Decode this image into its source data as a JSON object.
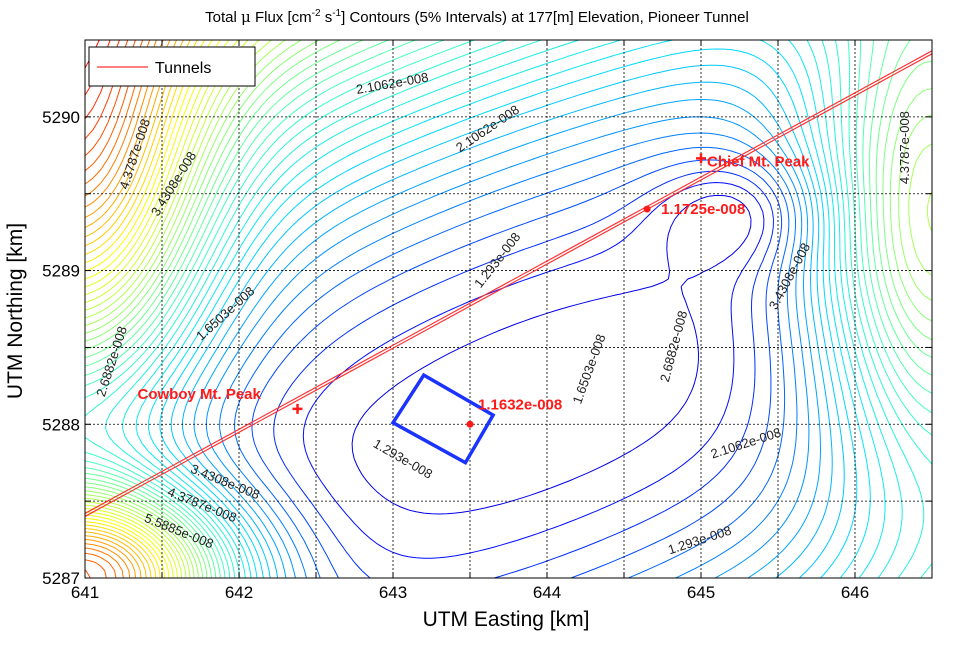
{
  "chart_data": {
    "type": "contour",
    "title_parts": {
      "a": "Total ",
      "mu": "μ",
      "b": " Flux [cm",
      "sup1": "-2",
      "c": " s",
      "sup2": "-1",
      "d": "] Contours (5% Intervals) at 177[m] Elevation, Pioneer Tunnel"
    },
    "xlabel": "UTM Easting [km]",
    "ylabel": "UTM Northing [km]",
    "xlim": [
      641.0,
      646.5
    ],
    "ylim": [
      5287.0,
      5290.5
    ],
    "xticks": [
      641,
      642,
      643,
      644,
      645,
      646
    ],
    "yticks": [
      5287,
      5288,
      5289,
      5290
    ],
    "grid": true,
    "legend": {
      "position": "top-left",
      "entries": [
        {
          "label": "Tunnels",
          "color": "#ff3030"
        }
      ]
    },
    "colormap": [
      "#000088",
      "#0000ff",
      "#0080ff",
      "#00e0ff",
      "#40ffc0",
      "#a0ff60",
      "#ffff00",
      "#ff8000",
      "#ff0000"
    ],
    "contour_labels": [
      {
        "text": "2.1062e-008",
        "x": 643.0,
        "y": 5290.19,
        "angle": -10
      },
      {
        "text": "2.1062e-008",
        "x": 643.63,
        "y": 5289.9,
        "angle": -34
      },
      {
        "text": "4.3787e-008",
        "x": 641.35,
        "y": 5289.75,
        "angle": -72
      },
      {
        "text": "3.4308e-008",
        "x": 641.6,
        "y": 5289.55,
        "angle": -58
      },
      {
        "text": "1.6503e-008",
        "x": 641.93,
        "y": 5288.7,
        "angle": -42
      },
      {
        "text": "2.6882e-008",
        "x": 641.2,
        "y": 5288.4,
        "angle": -72
      },
      {
        "text": "1.293e-008",
        "x": 643.7,
        "y": 5289.05,
        "angle": -52
      },
      {
        "text": "1.293e-008",
        "x": 643.05,
        "y": 5287.75,
        "angle": 30
      },
      {
        "text": "1.6503e-008",
        "x": 644.3,
        "y": 5288.35,
        "angle": -70
      },
      {
        "text": "2.6882e-008",
        "x": 644.85,
        "y": 5288.5,
        "angle": -75
      },
      {
        "text": "3.4308e-008",
        "x": 645.6,
        "y": 5288.95,
        "angle": -62
      },
      {
        "text": "4.3787e-008",
        "x": 646.35,
        "y": 5289.8,
        "angle": -90
      },
      {
        "text": "2.1062e-008",
        "x": 645.3,
        "y": 5287.85,
        "angle": -18
      },
      {
        "text": "1.293e-008",
        "x": 645.0,
        "y": 5287.22,
        "angle": -18
      },
      {
        "text": "3.4308e-008",
        "x": 641.9,
        "y": 5287.6,
        "angle": 22
      },
      {
        "text": "4.3787e-008",
        "x": 641.75,
        "y": 5287.45,
        "angle": 22
      },
      {
        "text": "5.5885e-008",
        "x": 641.6,
        "y": 5287.28,
        "angle": 22
      }
    ],
    "tunnel": {
      "x": [
        641.0,
        646.5
      ],
      "y": [
        5287.42,
        5290.43
      ],
      "color": "#ff3030"
    },
    "peaks": [
      {
        "label": "Cowboy Mt. Peak",
        "x": 642.38,
        "y": 5288.1
      },
      {
        "label": "Chief Mt. Peak",
        "x": 645.0,
        "y": 5289.73
      }
    ],
    "flux_points": [
      {
        "label": "1.1632e-008",
        "x": 643.5,
        "y": 5288.0
      },
      {
        "label": "1.1725e-008",
        "x": 644.65,
        "y": 5289.4
      }
    ],
    "detector_box": {
      "x": [
        643.2,
        643.65,
        643.47,
        643.0
      ],
      "y": [
        5288.32,
        5288.06,
        5287.75,
        5288.01
      ],
      "color": "#1a33ff"
    }
  }
}
